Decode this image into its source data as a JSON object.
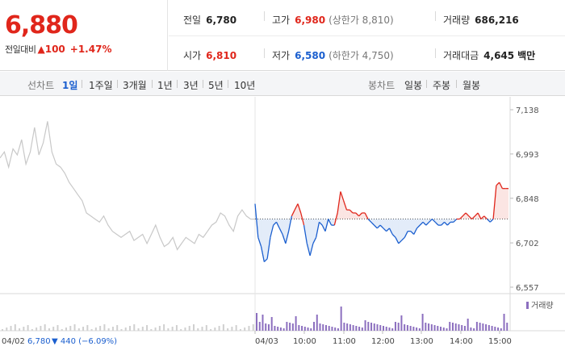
{
  "header": {
    "price": "6,880",
    "change_label": "전일대비",
    "change_value": "100",
    "change_pct": "+1.47%"
  },
  "stats": {
    "prev_close": {
      "label": "전일",
      "value": "6,780"
    },
    "high": {
      "label": "고가",
      "value": "6,980",
      "sub": "(상한가 8,810)"
    },
    "volume": {
      "label": "거래량",
      "value": "686,216"
    },
    "open": {
      "label": "시가",
      "value": "6,810"
    },
    "low": {
      "label": "저가",
      "value": "6,580",
      "sub": "(하한가 4,750)"
    },
    "amount": {
      "label": "거래대금",
      "value": "4,645",
      "unit": "백만"
    }
  },
  "toolbar": {
    "line_title": "선차트",
    "line_options": [
      "1일",
      "1주일",
      "3개월",
      "1년",
      "3년",
      "5년",
      "10년"
    ],
    "selected": "1일",
    "candle_title": "봉차트",
    "candle_options": [
      "일봉",
      "주봉",
      "월봉"
    ]
  },
  "colors": {
    "up": "#e0261b",
    "down": "#1b5fcf",
    "prev_day": "#c8c8c8",
    "volume": "#8c6fbf"
  },
  "chart_data": {
    "type": "line",
    "y_ticks": [
      "7,138",
      "6,993",
      "6,848",
      "6,702",
      "6,557"
    ],
    "y_tick_values": [
      7138,
      6993,
      6848,
      6702,
      6557
    ],
    "ylim": [
      6557,
      7138
    ],
    "baseline": 6780,
    "x_labels": [
      "04/03",
      "10:00",
      "11:00",
      "12:00",
      "13:00",
      "14:00",
      "15:00"
    ],
    "prev_day_label": "04/02",
    "prev_day_info": {
      "close": "6,780",
      "change": "440",
      "pct": "(−6.09%)"
    },
    "volume_legend": "거래량",
    "series": [
      {
        "values_prev_day": [
          6980,
          7000,
          6950,
          7010,
          6990,
          7040,
          6960,
          7000,
          7080,
          6990,
          7030,
          7100,
          7000,
          6960,
          6950,
          6930,
          6900,
          6880,
          6860,
          6840,
          6800,
          6790,
          6780,
          6770,
          6790,
          6760,
          6740,
          6730,
          6720,
          6730,
          6740,
          6710,
          6720,
          6730,
          6700,
          6730,
          6760,
          6720,
          6690,
          6700,
          6720,
          6680,
          6700,
          6720,
          6710,
          6700,
          6730,
          6720,
          6740,
          6760,
          6770,
          6800,
          6790,
          6760,
          6740,
          6790,
          6810,
          6790,
          6780,
          6780
        ]
      },
      {
        "values_today": [
          6830,
          6720,
          6690,
          6640,
          6650,
          6720,
          6760,
          6770,
          6750,
          6730,
          6700,
          6740,
          6790,
          6810,
          6830,
          6800,
          6760,
          6700,
          6660,
          6700,
          6720,
          6770,
          6760,
          6740,
          6780,
          6760,
          6760,
          6800,
          6870,
          6840,
          6810,
          6810,
          6800,
          6800,
          6790,
          6800,
          6800,
          6780,
          6770,
          6760,
          6750,
          6760,
          6750,
          6740,
          6750,
          6730,
          6720,
          6700,
          6710,
          6720,
          6740,
          6740,
          6730,
          6750,
          6760,
          6770,
          6760,
          6770,
          6780,
          6770,
          6760,
          6760,
          6770,
          6760,
          6770,
          6770,
          6780,
          6780,
          6790,
          6800,
          6790,
          6780,
          6790,
          6800,
          6780,
          6790,
          6780,
          6770,
          6780,
          6890,
          6900,
          6880,
          6880,
          6880
        ]
      }
    ],
    "volume_spikes": [
      2,
      5,
      13,
      20,
      28,
      36,
      48,
      55,
      70,
      82
    ]
  }
}
